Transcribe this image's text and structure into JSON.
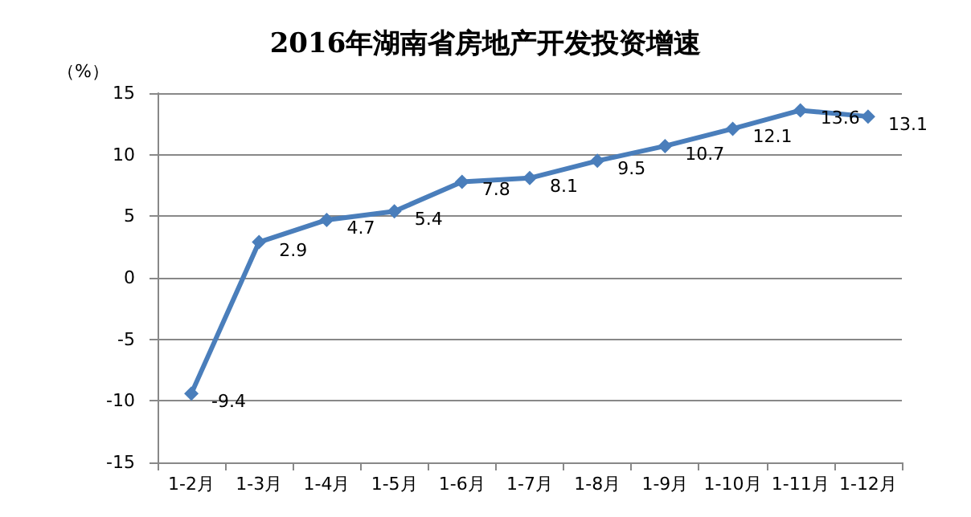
{
  "chart_data": {
    "type": "line",
    "title": "2016年湖南省房地产开发投资增速",
    "ylabel": "（%）",
    "categories": [
      "1-2月",
      "1-3月",
      "1-4月",
      "1-5月",
      "1-6月",
      "1-7月",
      "1-8月",
      "1-9月",
      "1-10月",
      "1-11月",
      "1-12月"
    ],
    "series": [
      {
        "color": "#4a7ebb",
        "values": [
          -9.4,
          2.9,
          4.7,
          5.4,
          7.8,
          8.1,
          9.5,
          10.7,
          12.1,
          13.6,
          13.1
        ]
      }
    ],
    "ylim": [
      -15,
      15
    ],
    "yticks": [
      -15,
      -10,
      -5,
      0,
      5,
      10,
      15
    ],
    "grid": "y",
    "marker": "diamond",
    "data_labels": true
  }
}
